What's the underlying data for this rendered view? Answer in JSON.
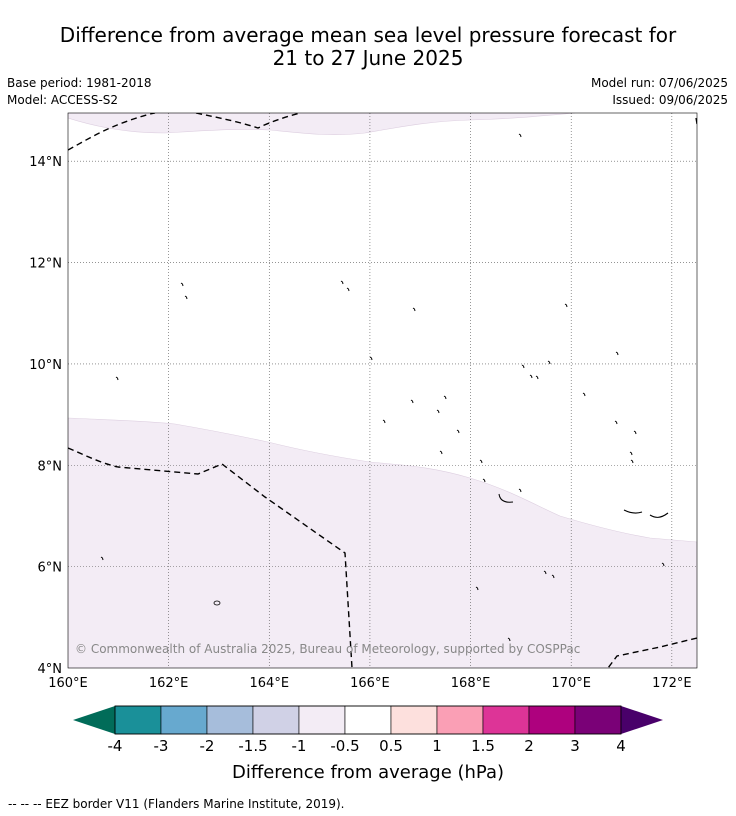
{
  "header": {
    "title_line1": "Difference from average mean sea level pressure forecast for",
    "title_line2": "21 to 27 June 2025",
    "base_period": "Base period: 1981-2018",
    "model": "Model: ACCESS-S2",
    "model_run": "Model run: 07/06/2025",
    "issued": "Issued: 09/06/2025"
  },
  "map": {
    "lat_labels": [
      "14°N",
      "12°N",
      "10°N",
      "8°N",
      "6°N",
      "4°N"
    ],
    "lon_labels": [
      "160°E",
      "162°E",
      "164°E",
      "166°E",
      "168°E",
      "170°E",
      "172°E"
    ],
    "lat_values": [
      14,
      12,
      10,
      8,
      6,
      4
    ],
    "lon_values": [
      160,
      162,
      164,
      166,
      168,
      170,
      172
    ],
    "lon_range": [
      160,
      172.5
    ],
    "lat_range": [
      4,
      14.95
    ],
    "copyright": "© Commonwealth of Australia 2025, Bureau of Meteorology, supported by COSPPac",
    "anomaly_fill_color": "#f3ecf5",
    "anomaly_band": "-0.5 to -1 hPa"
  },
  "colorbar": {
    "ticks": [
      "-4",
      "-3",
      "-2",
      "-1.5",
      "-1",
      "-0.5",
      "0.5",
      "1",
      "1.5",
      "2",
      "3",
      "4"
    ],
    "colors": [
      "#1a9099",
      "#67a9cf",
      "#a6bddb",
      "#d0d1e6",
      "#f3ecf5",
      "#ffffff",
      "#fde0dd",
      "#fa9fb5",
      "#dd3497",
      "#ae017e",
      "#7a0177"
    ],
    "under_color": "#016c59",
    "over_color": "#49006a",
    "label": "Difference from average (hPa)"
  },
  "legend": {
    "eez_text": "--  --  -- EEZ border V11 (Flanders Marine Institute, 2019)."
  }
}
